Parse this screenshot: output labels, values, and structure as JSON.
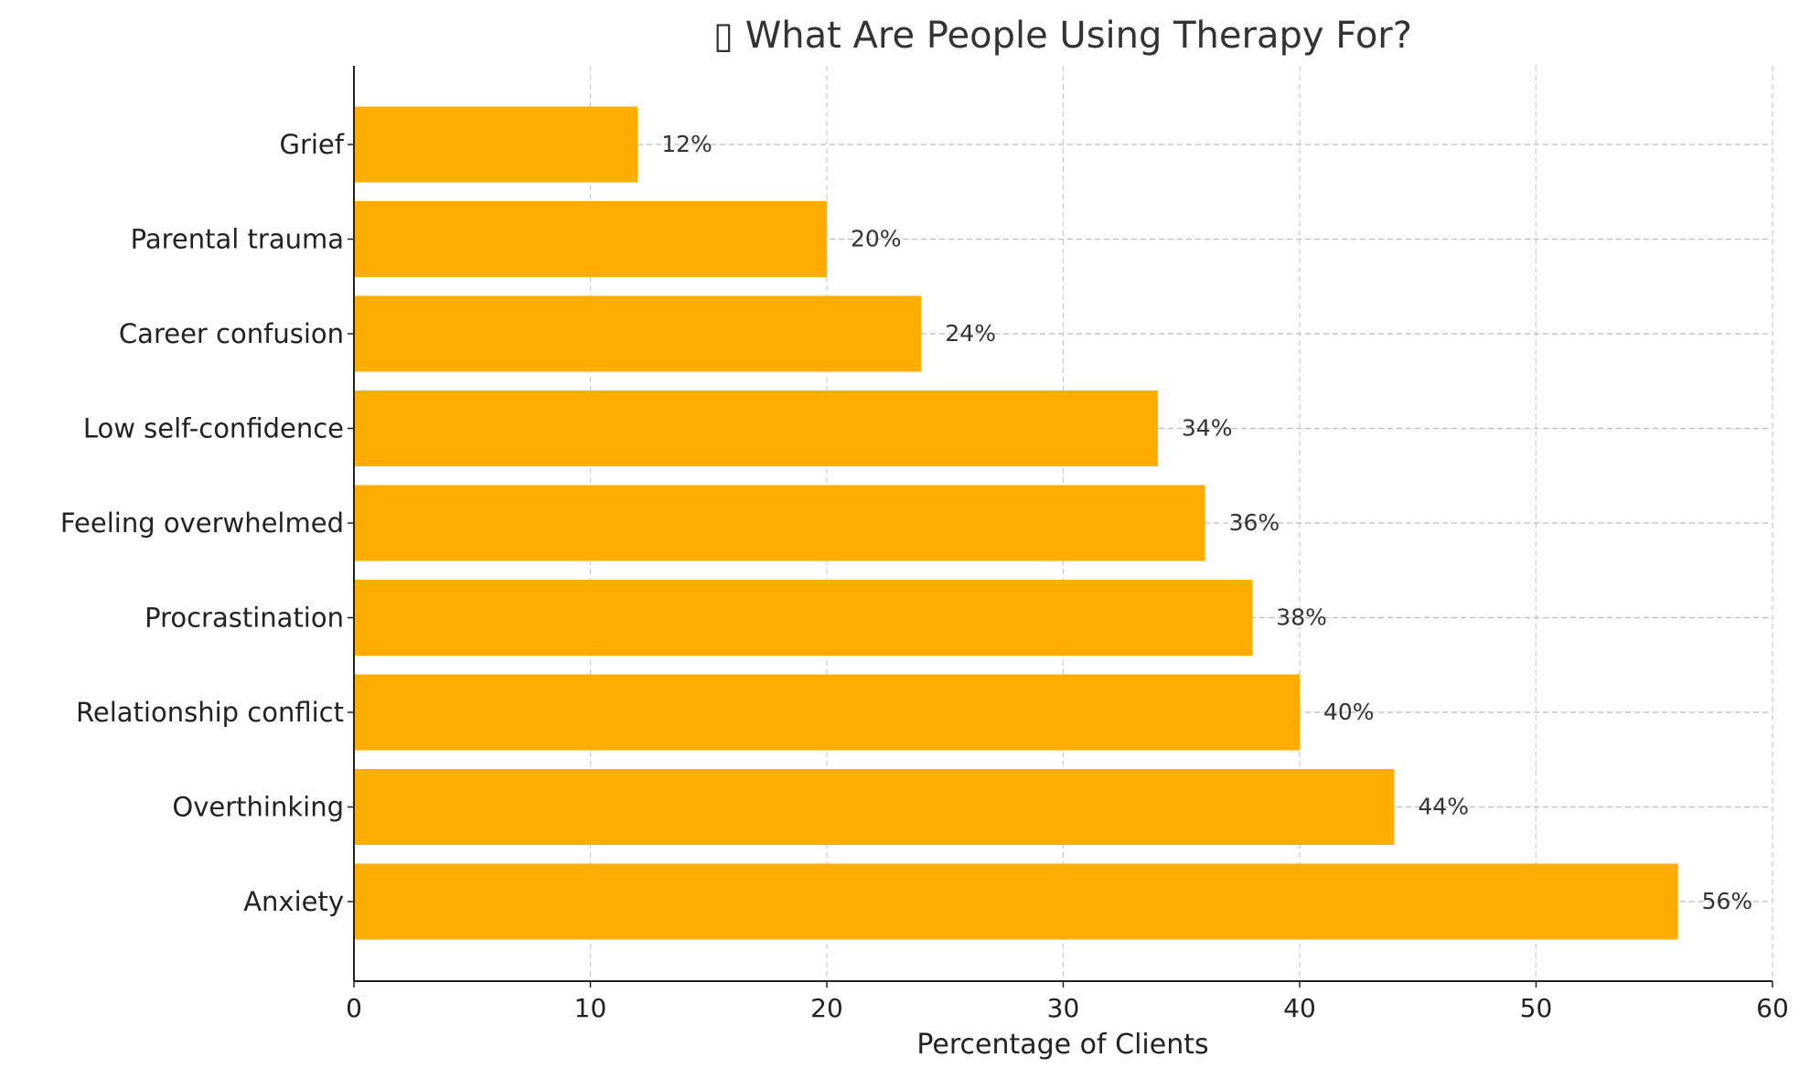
{
  "chart_data": {
    "type": "bar",
    "orientation": "horizontal",
    "title": "▯ What Are People Using Therapy For?",
    "xlabel": "Percentage of Clients",
    "ylabel": "",
    "categories": [
      "Anxiety",
      "Overthinking",
      "Relationship conflict",
      "Procrastination",
      "Feeling overwhelmed",
      "Low self-confidence",
      "Career confusion",
      "Parental trauma",
      "Grief"
    ],
    "values": [
      56,
      44,
      40,
      38,
      36,
      34,
      24,
      20,
      12
    ],
    "data_labels": [
      "56%",
      "44%",
      "40%",
      "38%",
      "36%",
      "34%",
      "24%",
      "20%",
      "12%"
    ],
    "xlim": [
      0,
      60
    ],
    "xticks": [
      0,
      10,
      20,
      30,
      40,
      50,
      60
    ],
    "xtick_labels": [
      "0",
      "10",
      "20",
      "30",
      "40",
      "50",
      "60"
    ],
    "grid": true,
    "bar_color": "#FFAE00"
  }
}
